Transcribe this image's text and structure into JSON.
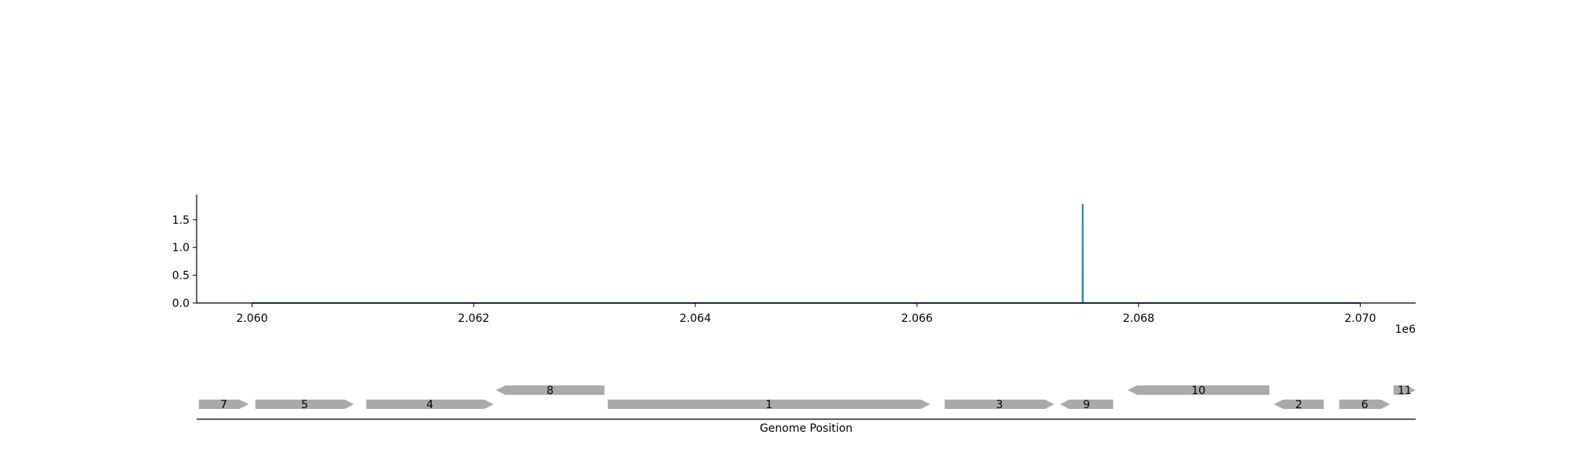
{
  "chart_data": [
    {
      "type": "line",
      "title": "",
      "xlabel": "",
      "ylabel": "",
      "x_offset_label": "1e6",
      "xlim": [
        2059500,
        2070500
      ],
      "ylim": [
        0,
        1.95
      ],
      "xticks": [
        2060000,
        2062000,
        2064000,
        2066000,
        2068000,
        2070000
      ],
      "xtick_labels": [
        "2.060",
        "2.062",
        "2.064",
        "2.066",
        "2.068",
        "2.070"
      ],
      "yticks": [
        0.0,
        0.5,
        1.0,
        1.5
      ],
      "ytick_labels": [
        "0.0",
        "0.5",
        "1.0",
        "1.5"
      ],
      "grid": false,
      "line_color": "#1f77b4",
      "series": [
        {
          "x": [
            2060000,
            2067494,
            2067495,
            2067496,
            2070000
          ],
          "values": [
            0,
            0,
            1.78,
            0,
            0
          ]
        }
      ]
    },
    {
      "type": "gene-track",
      "xlabel": "Genome Position",
      "gene_color": "#aaaaaa",
      "genes": [
        {
          "label": "7",
          "start": 2059520,
          "end": 2059970,
          "strand": "+",
          "row": 0
        },
        {
          "label": "5",
          "start": 2060030,
          "end": 2060920,
          "strand": "+",
          "row": 0
        },
        {
          "label": "4",
          "start": 2061030,
          "end": 2062180,
          "strand": "+",
          "row": 0
        },
        {
          "label": "8",
          "start": 2062200,
          "end": 2063180,
          "strand": "-",
          "row": 1
        },
        {
          "label": "1",
          "start": 2063210,
          "end": 2066120,
          "strand": "+",
          "row": 0
        },
        {
          "label": "3",
          "start": 2066250,
          "end": 2067240,
          "strand": "+",
          "row": 0
        },
        {
          "label": "9",
          "start": 2067290,
          "end": 2067770,
          "strand": "-",
          "row": 0
        },
        {
          "label": "10",
          "start": 2067900,
          "end": 2069180,
          "strand": "-",
          "row": 1
        },
        {
          "label": "2",
          "start": 2069220,
          "end": 2069670,
          "strand": "-",
          "row": 0
        },
        {
          "label": "6",
          "start": 2069810,
          "end": 2070270,
          "strand": "+",
          "row": 0
        },
        {
          "label": "11",
          "start": 2070300,
          "end": 2070500,
          "strand": "+",
          "row": 1
        }
      ]
    }
  ]
}
